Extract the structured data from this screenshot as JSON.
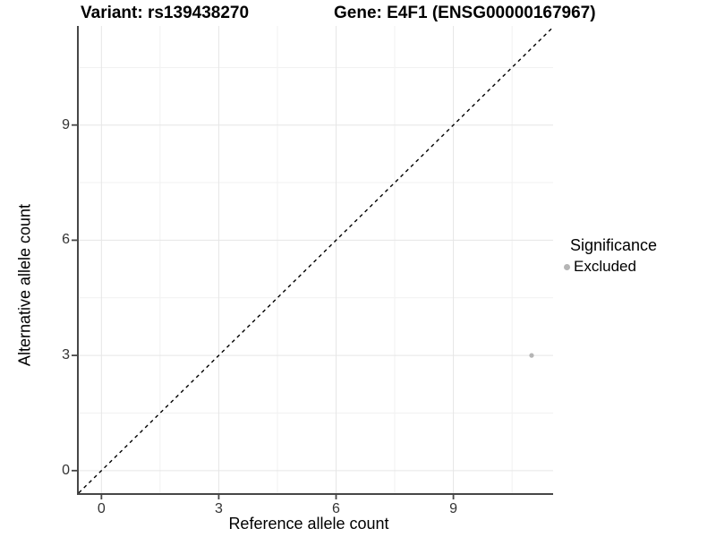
{
  "titles": {
    "variant": "Variant: rs139438270",
    "gene": "Gene: E4F1 (ENSG00000167967)"
  },
  "chart_data": {
    "type": "scatter",
    "xlabel": "Reference allele count",
    "ylabel": "Alternative allele count",
    "xticks": [
      0,
      3,
      6,
      9
    ],
    "yticks": [
      0,
      3,
      6,
      9
    ],
    "x_minor_ticks": [
      1.5,
      4.5,
      7.5,
      10.5
    ],
    "y_minor_ticks": [
      1.5,
      4.5,
      7.5,
      10.5
    ],
    "xlim": [
      -0.58,
      11.55
    ],
    "ylim": [
      -0.61,
      11.58
    ],
    "grid": {
      "major_color": "#e6e6e6",
      "minor_color": "#f1f1f1",
      "background": "#ffffff"
    },
    "axis_color": "#474747",
    "identity_line": {
      "style": "dashed",
      "color": "#000000",
      "slope": 1,
      "intercept": 0
    },
    "points": [
      {
        "x": 11,
        "y": 3,
        "significance": "Excluded"
      }
    ],
    "point_color": "#b5b5b5",
    "legend": {
      "title": "Significance",
      "position": "right",
      "items": [
        {
          "label": "Excluded",
          "color": "#b5b5b5",
          "marker": "circle"
        }
      ]
    }
  }
}
